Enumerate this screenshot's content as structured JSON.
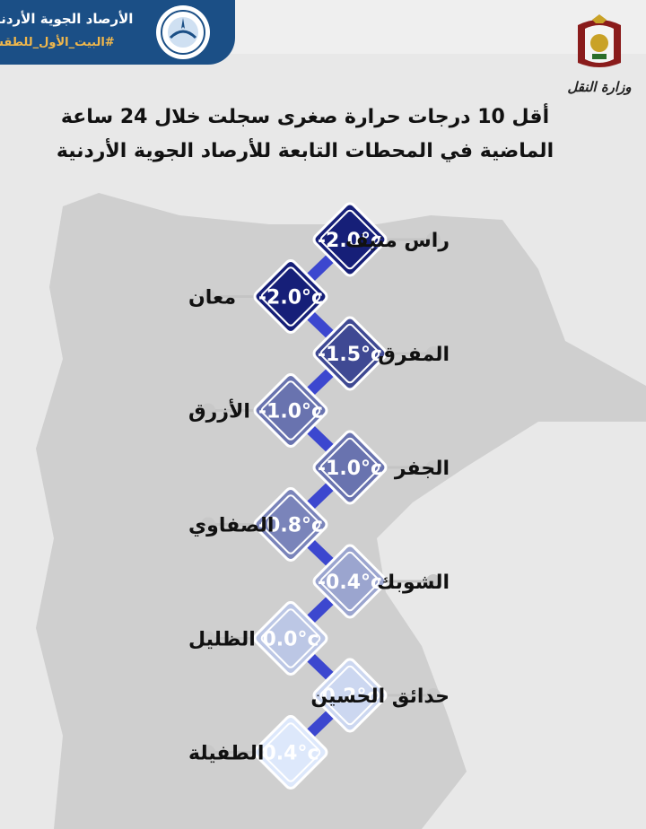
{
  "header": {
    "org_name": "الأرصاد الجوية الأردنية",
    "hashtag": "#البيت_الأول_للطقس",
    "ministry": "وزارة النقل"
  },
  "chart_data": {
    "type": "table",
    "title": "أقل 10 درجات حرارة صغرى سجلت خلال 24 ساعة الماضية في المحطات التابعة للأرصاد الجوية الأردنية",
    "unit": "°c",
    "categories": [
      "راس منيف",
      "معان",
      "المفرق",
      "الأزرق",
      "الجفر",
      "الصفاوي",
      "الشوبك",
      "الظليل",
      "حدائق الحسين",
      "الطفيلة"
    ],
    "values": [
      -2.0,
      -2.0,
      -1.5,
      -1.0,
      -1.0,
      -0.8,
      -0.4,
      0.0,
      0.2,
      0.4
    ],
    "display": [
      "-2.0°c",
      "-2.0°c",
      "-1.5°c",
      "-1.0°c",
      "-1.0°c",
      "-0.8°c",
      "-0.4°c",
      "0.0°c",
      "0.2°c",
      "0.4°c"
    ],
    "colors": {
      "coldest": "#161f78",
      "warmest": "#dde8fb",
      "connector": "#3c47cf",
      "header": "#1b4f86",
      "accent": "#f2b84b"
    }
  }
}
